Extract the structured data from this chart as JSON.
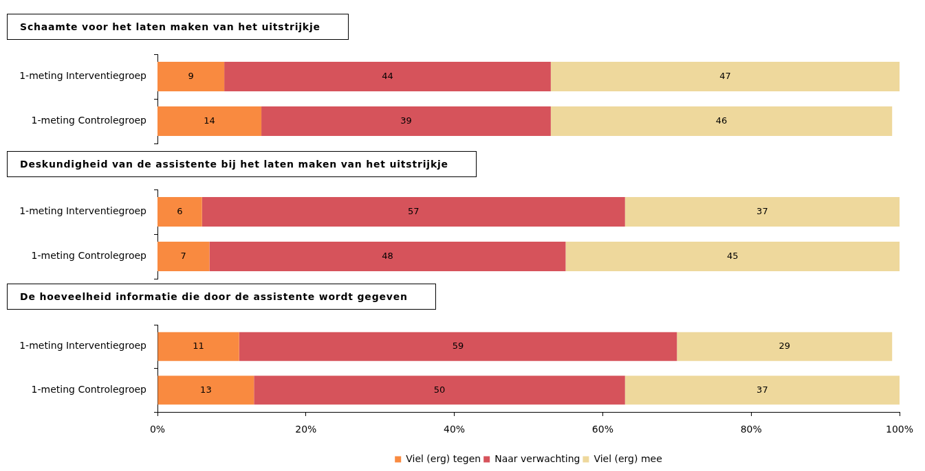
{
  "chart_data": [
    {
      "type": "bar",
      "orientation": "horizontal",
      "stacked": true,
      "title": "Schaamte voor het laten maken van het uitstrijkje",
      "categories": [
        "1-meting Interventiegroep",
        "1-meting Controlegroep"
      ],
      "series": [
        {
          "color": "#f98a40",
          "values": [
            9,
            14
          ]
        },
        {
          "color": "#d6535b",
          "values": [
            44,
            39
          ]
        },
        {
          "color": "#eed89c",
          "values": [
            47,
            46
          ]
        }
      ],
      "xlim": [
        0,
        100
      ],
      "tick_labels": "y",
      "data_labels": true,
      "grid": false
    },
    {
      "type": "bar",
      "orientation": "horizontal",
      "stacked": true,
      "title": "Deskundigheid van de assistente bij het laten maken van het uitstrijkje",
      "categories": [
        "1-meting Interventiegroep",
        "1-meting Controlegroep"
      ],
      "series": [
        {
          "color": "#f98a40",
          "values": [
            6,
            7
          ]
        },
        {
          "color": "#d6535b",
          "values": [
            57,
            48
          ]
        },
        {
          "color": "#eed89c",
          "values": [
            37,
            45
          ]
        }
      ],
      "xlim": [
        0,
        100
      ],
      "tick_labels": "y",
      "data_labels": true,
      "grid": false
    },
    {
      "type": "bar",
      "orientation": "horizontal",
      "stacked": true,
      "title": "De hoeveelheid informatie die door de assistente wordt gegeven",
      "categories": [
        "1-meting Interventiegroep",
        "1-meting Controlegroep"
      ],
      "series": [
        {
          "name": "Viel (erg) tegen",
          "color": "#f98a40",
          "values": [
            11,
            13
          ]
        },
        {
          "name": "Naar verwachting",
          "color": "#d6535b",
          "values": [
            59,
            50
          ]
        },
        {
          "name": "Viel (erg) mee",
          "color": "#eed89c",
          "values": [
            29,
            37
          ]
        }
      ],
      "xlim": [
        0,
        100
      ],
      "xticks": [
        {
          "value": 0,
          "label": "0%"
        },
        {
          "value": 20,
          "label": "20%"
        },
        {
          "value": 40,
          "label": "40%"
        },
        {
          "value": 60,
          "label": "60%"
        },
        {
          "value": 80,
          "label": "80%"
        },
        {
          "value": 100,
          "label": "100%"
        }
      ],
      "data_labels": true,
      "grid": false,
      "legend": "bottom"
    }
  ]
}
